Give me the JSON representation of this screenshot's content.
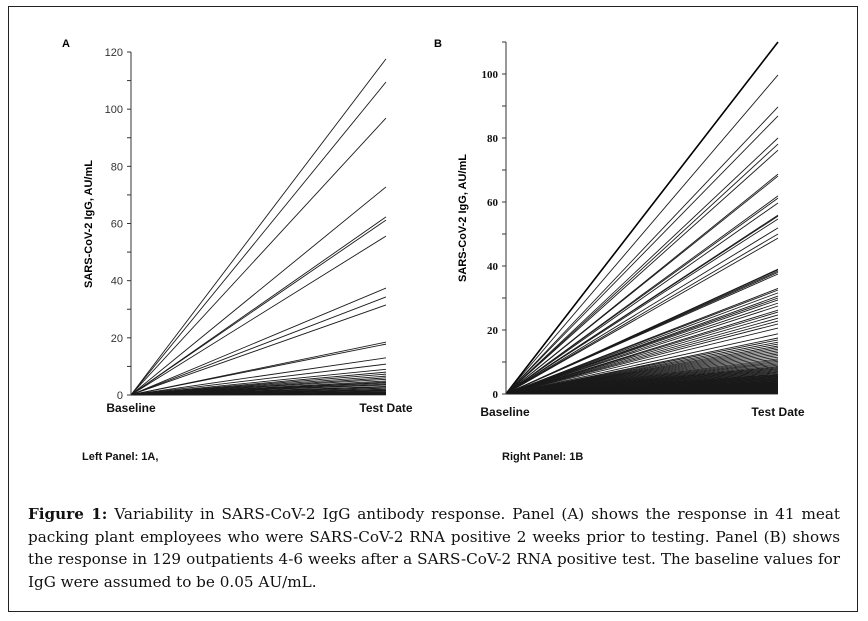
{
  "figure": {
    "caption_label": "Figure 1:",
    "caption_text": " Variability in SARS-CoV-2 IgG antibody response. Panel (A) shows the response in 41 meat packing plant employees who were SARS-CoV-2 RNA positive 2 weeks prior to testing. Panel (B) shows the response in 129 outpatients 4-6 weeks after a SARS-CoV-2 RNA positive test. The baseline values for IgG were assumed to be 0.05 AU/mL.",
    "left_note": "Left Panel: 1A,",
    "right_note": "Right Panel: 1B"
  },
  "chart_data": [
    {
      "type": "line",
      "panel": "A",
      "title": "A",
      "xlabel": "",
      "ylabel": "SARS-CoV-2 IgG, AU/mL",
      "categories": [
        "Baseline",
        "Test Date"
      ],
      "ylim": [
        0,
        120
      ],
      "yticks": [
        0,
        20,
        40,
        60,
        80,
        100,
        120
      ],
      "minor_tick_step": 10,
      "grid": false,
      "baseline_value": 0.05,
      "n_series": 41,
      "series_end_values": [
        117.6,
        109.5,
        96.9,
        72.8,
        62.3,
        61.2,
        55.6,
        37.4,
        34.3,
        31.5,
        18.5,
        17.8,
        13.0,
        10.8,
        9.0,
        8.0,
        7.3,
        6.6,
        6.0,
        5.5,
        4.9,
        4.5,
        4.2,
        3.8,
        3.5,
        3.0,
        2.8,
        2.4,
        2.0,
        1.7,
        1.5,
        1.2,
        1.0,
        0.8,
        0.6,
        0.5,
        0.4,
        0.3,
        0.2,
        0.1,
        0.05
      ]
    },
    {
      "type": "line",
      "panel": "B",
      "title": "B",
      "xlabel": "",
      "ylabel": "SARS-CoV-2 IgG, AU/mL",
      "categories": [
        "Baseline",
        "Test Date"
      ],
      "ylim": [
        0,
        110
      ],
      "yticks": [
        0,
        20,
        40,
        60,
        80,
        100
      ],
      "minor_tick_step": 10,
      "grid": false,
      "baseline_value": 0.05,
      "n_series": 129,
      "series_end_values": [
        110.0,
        99.7,
        89.7,
        86.9,
        80.0,
        78.1,
        76.2,
        68.7,
        68.1,
        61.9,
        61.2,
        59.7,
        55.9,
        55.6,
        54.7,
        51.9,
        50.0,
        48.7,
        39.0,
        38.8,
        38.4,
        38.0,
        37.5,
        33.0,
        32.5,
        31.6,
        30.6,
        30.0,
        29.4,
        28.4,
        27.5,
        26.2,
        25.6,
        24.7,
        23.7,
        22.8,
        21.9,
        20.6,
        18.8,
        17.5,
        16.9,
        16.2,
        15.6,
        15.0,
        14.5,
        14.0,
        13.5,
        13.0,
        12.5,
        12.0,
        11.5,
        11.0,
        10.6,
        10.2,
        9.8,
        9.4,
        9.0,
        8.6,
        8.3,
        8.0,
        7.7,
        7.4,
        7.1,
        6.8,
        6.5,
        6.2,
        6.0,
        5.8,
        5.6,
        5.4,
        5.2,
        5.0,
        4.8,
        4.6,
        4.4,
        4.2,
        4.0,
        3.9,
        3.8,
        3.7,
        3.6,
        3.5,
        3.4,
        3.3,
        3.2,
        3.1,
        3.0,
        2.9,
        2.8,
        2.7,
        2.6,
        2.5,
        2.4,
        2.3,
        2.2,
        2.1,
        2.0,
        1.9,
        1.8,
        1.7,
        1.6,
        1.5,
        1.4,
        1.3,
        1.2,
        1.1,
        1.0,
        0.95,
        0.9,
        0.85,
        0.8,
        0.75,
        0.7,
        0.65,
        0.6,
        0.55,
        0.5,
        0.45,
        0.4,
        0.35,
        0.3,
        0.27,
        0.24,
        0.2,
        0.17,
        0.14,
        0.1,
        0.07,
        0.05
      ]
    }
  ]
}
